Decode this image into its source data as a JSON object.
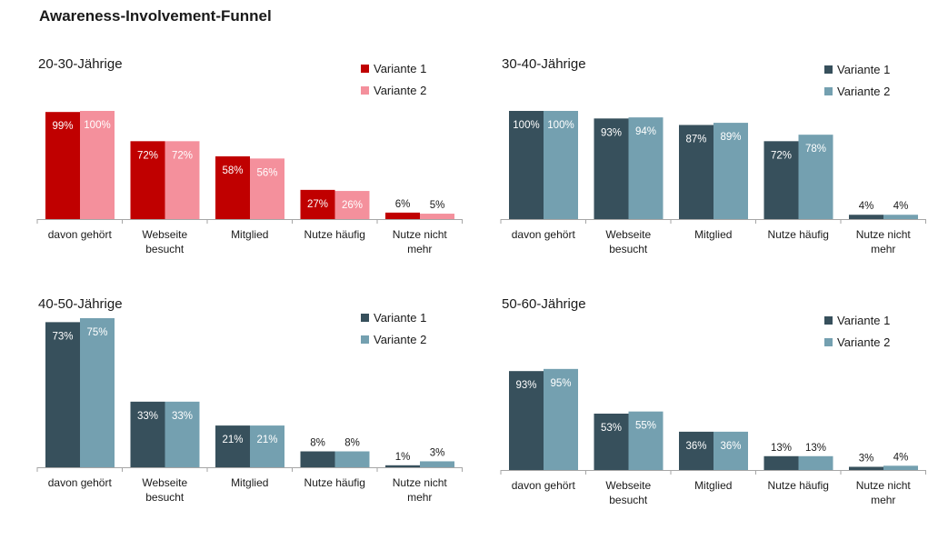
{
  "title": "Awareness-Involvement-Funnel",
  "chart_data": [
    {
      "type": "bar",
      "title": "20-30-Jährige",
      "categories": [
        "davon gehört",
        "Webseite besucht",
        "Mitglied",
        "Nutze häufig",
        "Nutze nicht mehr"
      ],
      "series": [
        {
          "name": "Variante 1",
          "color": "#c00000",
          "values": [
            99,
            72,
            58,
            27,
            6
          ]
        },
        {
          "name": "Variante 2",
          "color": "#f4909c",
          "values": [
            100,
            72,
            56,
            26,
            5
          ]
        }
      ],
      "ylim": [
        0,
        100
      ],
      "grid": false,
      "legend": "top-right",
      "label_format": "{v}%"
    },
    {
      "type": "bar",
      "title": "30-40-Jährige",
      "categories": [
        "davon gehört",
        "Webseite besucht",
        "Mitglied",
        "Nutze häufig",
        "Nutze nicht mehr"
      ],
      "series": [
        {
          "name": "Variante 1",
          "color": "#37505c",
          "values": [
            100,
            93,
            87,
            72,
            4
          ]
        },
        {
          "name": "Variante 2",
          "color": "#74a0b0",
          "values": [
            100,
            94,
            89,
            78,
            4
          ]
        }
      ],
      "ylim": [
        0,
        100
      ],
      "grid": false,
      "legend": "top-right",
      "label_format": "{v}%"
    },
    {
      "type": "bar",
      "title": "40-50-Jährige",
      "categories": [
        "davon gehört",
        "Webseite besucht",
        "Mitglied",
        "Nutze häufig",
        "Nutze nicht mehr"
      ],
      "series": [
        {
          "name": "Variante 1",
          "color": "#37505c",
          "values": [
            73,
            33,
            21,
            8,
            1
          ]
        },
        {
          "name": "Variante 2",
          "color": "#74a0b0",
          "values": [
            75,
            33,
            21,
            8,
            3
          ]
        }
      ],
      "ylim": [
        0,
        75
      ],
      "grid": false,
      "legend": "top-right",
      "label_format": "{v}%"
    },
    {
      "type": "bar",
      "title": "50-60-Jährige",
      "categories": [
        "davon gehört",
        "Webseite besucht",
        "Mitglied",
        "Nutze häufig",
        "Nutze nicht mehr"
      ],
      "series": [
        {
          "name": "Variante 1",
          "color": "#37505c",
          "values": [
            93,
            53,
            36,
            13,
            3
          ]
        },
        {
          "name": "Variante 2",
          "color": "#74a0b0",
          "values": [
            95,
            55,
            36,
            13,
            4
          ]
        }
      ],
      "ylim": [
        0,
        100
      ],
      "grid": false,
      "legend": "top-right",
      "label_format": "{v}%"
    }
  ]
}
